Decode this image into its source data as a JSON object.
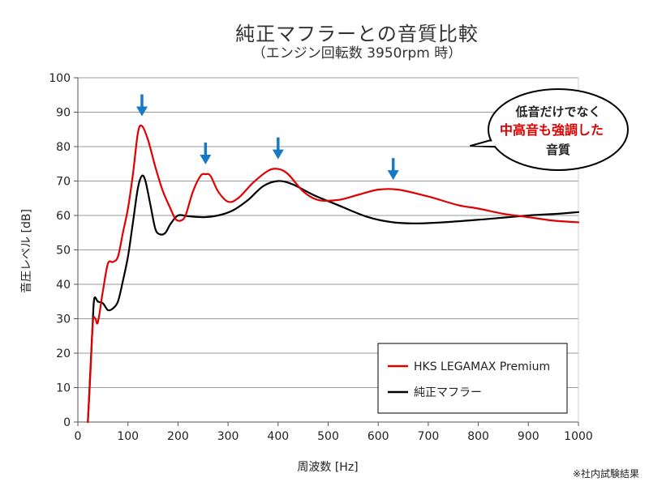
{
  "chart_data": {
    "type": "line",
    "title": "純正マフラーとの音質比較",
    "subtitle": "（エンジン回転数 3950rpm 時）",
    "xlabel": "周波数 [Hz]",
    "ylabel": "音圧レベル [dB]",
    "xlim": [
      0,
      1000
    ],
    "ylim": [
      0,
      100
    ],
    "xticks": [
      0,
      100,
      200,
      300,
      400,
      500,
      600,
      700,
      800,
      900,
      1000
    ],
    "yticks": [
      0,
      10,
      20,
      30,
      40,
      50,
      60,
      70,
      80,
      90,
      100
    ],
    "grid": "horizontal",
    "legend_position": "bottom-right",
    "series": [
      {
        "name": "HKS LEGAMAX Premium",
        "color": "#e00000",
        "points": [
          [
            20,
            0
          ],
          [
            25,
            14
          ],
          [
            30,
            29
          ],
          [
            35,
            30
          ],
          [
            40,
            29
          ],
          [
            50,
            38
          ],
          [
            60,
            46
          ],
          [
            70,
            46.5
          ],
          [
            80,
            48
          ],
          [
            90,
            55
          ],
          [
            100,
            62
          ],
          [
            110,
            72
          ],
          [
            120,
            84
          ],
          [
            128,
            86
          ],
          [
            140,
            82
          ],
          [
            155,
            74
          ],
          [
            170,
            67
          ],
          [
            185,
            62
          ],
          [
            195,
            59
          ],
          [
            205,
            58.5
          ],
          [
            215,
            60
          ],
          [
            230,
            67
          ],
          [
            245,
            71.5
          ],
          [
            255,
            72
          ],
          [
            265,
            71.5
          ],
          [
            280,
            67
          ],
          [
            300,
            64
          ],
          [
            320,
            65
          ],
          [
            350,
            69.5
          ],
          [
            380,
            73
          ],
          [
            400,
            73.5
          ],
          [
            420,
            72
          ],
          [
            450,
            67
          ],
          [
            480,
            64.5
          ],
          [
            520,
            64.5
          ],
          [
            560,
            66
          ],
          [
            600,
            67.5
          ],
          [
            640,
            67.5
          ],
          [
            700,
            65.5
          ],
          [
            760,
            63
          ],
          [
            800,
            62
          ],
          [
            850,
            60.5
          ],
          [
            900,
            59.5
          ],
          [
            950,
            58.5
          ],
          [
            1000,
            58
          ]
        ]
      },
      {
        "name": "純正マフラー",
        "color": "#000000",
        "points": [
          [
            20,
            0
          ],
          [
            25,
            15
          ],
          [
            30,
            30
          ],
          [
            33,
            36
          ],
          [
            40,
            35
          ],
          [
            50,
            34.5
          ],
          [
            60,
            32.5
          ],
          [
            70,
            33
          ],
          [
            80,
            35
          ],
          [
            90,
            41
          ],
          [
            100,
            48
          ],
          [
            110,
            58
          ],
          [
            120,
            68
          ],
          [
            128,
            71.5
          ],
          [
            135,
            70
          ],
          [
            145,
            63
          ],
          [
            155,
            56
          ],
          [
            165,
            54.5
          ],
          [
            175,
            55
          ],
          [
            185,
            57.5
          ],
          [
            200,
            60
          ],
          [
            220,
            59.8
          ],
          [
            250,
            59.5
          ],
          [
            280,
            60
          ],
          [
            310,
            61.5
          ],
          [
            340,
            64.5
          ],
          [
            370,
            68.5
          ],
          [
            400,
            70
          ],
          [
            430,
            69
          ],
          [
            470,
            66
          ],
          [
            520,
            63
          ],
          [
            580,
            59.5
          ],
          [
            630,
            58
          ],
          [
            680,
            57.7
          ],
          [
            750,
            58.2
          ],
          [
            820,
            59
          ],
          [
            900,
            60
          ],
          [
            960,
            60.5
          ],
          [
            1000,
            61
          ]
        ]
      }
    ],
    "arrows_at_hz": [
      128,
      255,
      400,
      630
    ],
    "arrow_color": "#1878c8",
    "callout": {
      "line1": "低音だけでなく",
      "line2": "中高音も強調した",
      "line3": "音質",
      "highlight_color": "#e00000"
    }
  },
  "legend": {
    "red_label": "HKS LEGAMAX Premium",
    "black_label": "純正マフラー"
  },
  "footnote": "※社内試験結果"
}
